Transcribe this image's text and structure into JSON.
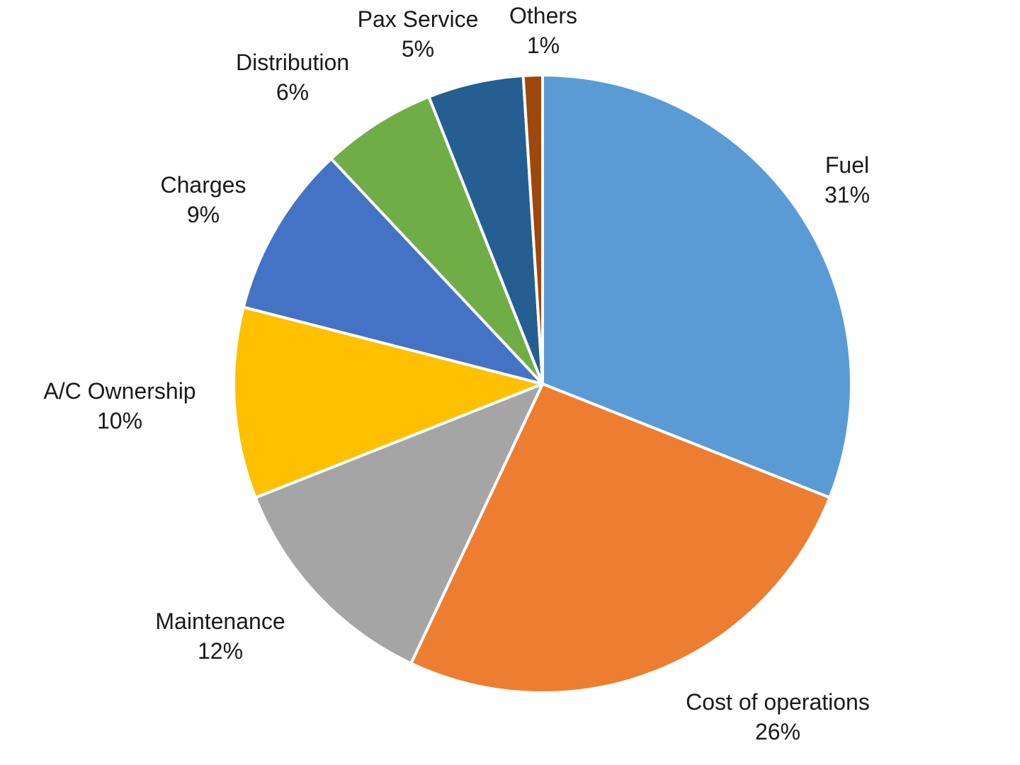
{
  "chart_data": {
    "type": "pie",
    "title": "",
    "start": "12 o'clock",
    "direction": "clockwise",
    "slices": [
      {
        "label": "Fuel",
        "value": 31,
        "value_text": "31%",
        "color": "#5b9bd5"
      },
      {
        "label": "Cost of operations",
        "value": 26,
        "value_text": "26%",
        "color": "#ed7d31"
      },
      {
        "label": "Maintenance",
        "value": 12,
        "value_text": "12%",
        "color": "#a5a5a5"
      },
      {
        "label": "A/C Ownership",
        "value": 10,
        "value_text": "10%",
        "color": "#ffc000"
      },
      {
        "label": "Charges",
        "value": 9,
        "value_text": "9%",
        "color": "#4472c4"
      },
      {
        "label": "Distribution",
        "value": 6,
        "value_text": "6%",
        "color": "#70ad47"
      },
      {
        "label": "Pax Service",
        "value": 5,
        "value_text": "5%",
        "color": "#255e91"
      },
      {
        "label": "Others",
        "value": 1,
        "value_text": "1%",
        "color": "#9e480e"
      }
    ]
  }
}
